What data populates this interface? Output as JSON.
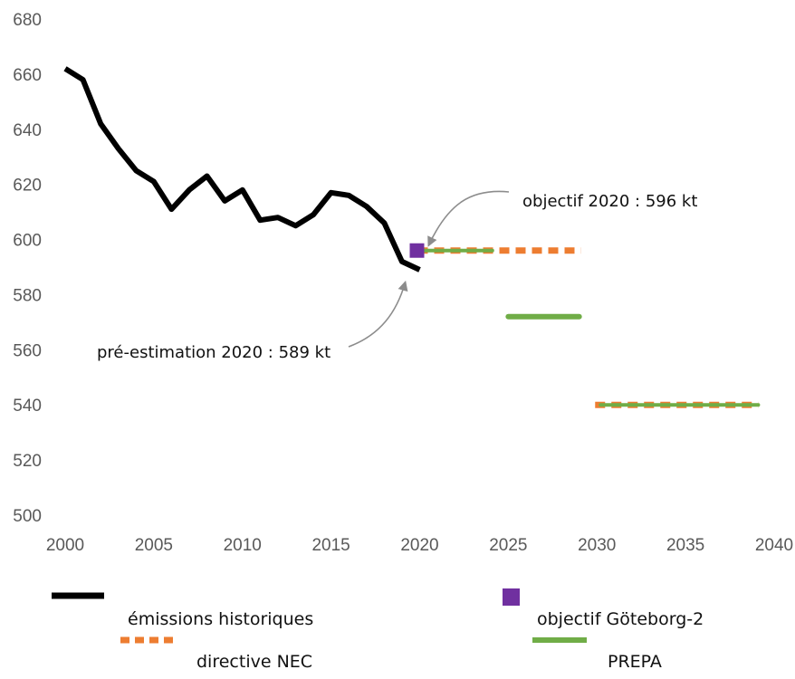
{
  "chart_data": {
    "type": "line",
    "x_ticks": [
      2000,
      2005,
      2010,
      2015,
      2020,
      2025,
      2030,
      2035,
      2040
    ],
    "y_ticks": [
      500,
      520,
      540,
      560,
      580,
      600,
      620,
      640,
      660,
      680
    ],
    "xlim": [
      2000,
      2040
    ],
    "ylim": [
      500,
      680
    ],
    "grid": false,
    "legend_position": "bottom",
    "series": [
      {
        "name": "émissions historiques",
        "kind": "line",
        "color": "#000000",
        "points": [
          [
            2000,
            662
          ],
          [
            2001,
            658
          ],
          [
            2002,
            642
          ],
          [
            2003,
            633
          ],
          [
            2004,
            625
          ],
          [
            2005,
            621
          ],
          [
            2006,
            611
          ],
          [
            2007,
            618
          ],
          [
            2008,
            623
          ],
          [
            2009,
            614
          ],
          [
            2010,
            618
          ],
          [
            2011,
            607
          ],
          [
            2012,
            608
          ],
          [
            2013,
            605
          ],
          [
            2014,
            609
          ],
          [
            2015,
            617
          ],
          [
            2016,
            616
          ],
          [
            2017,
            612
          ],
          [
            2018,
            606
          ],
          [
            2019,
            592
          ],
          [
            2020,
            589
          ]
        ]
      },
      {
        "name": "objectif Göteborg-2",
        "kind": "marker",
        "color": "#7030A0",
        "points": [
          [
            2020,
            596
          ]
        ]
      },
      {
        "name": "directive NEC",
        "kind": "dashed",
        "color": "#ED7D31",
        "segments": [
          {
            "x": [
              2020,
              2029
            ],
            "y": 596
          },
          {
            "x": [
              2030,
              2039
            ],
            "y": 540
          }
        ]
      },
      {
        "name": "PREPA",
        "kind": "solid",
        "color": "#70AD47",
        "segments": [
          {
            "x": [
              2020,
              2024
            ],
            "y": 596
          },
          {
            "x": [
              2025,
              2029
            ],
            "y": 572
          },
          {
            "x": [
              2030,
              2039
            ],
            "y": 540
          }
        ]
      }
    ],
    "annotations": [
      {
        "text": "objectif 2020 : 596 kt",
        "target": [
          2020,
          596
        ]
      },
      {
        "text": "pré-estimation 2020 : 589 kt",
        "target": [
          2020,
          589
        ]
      }
    ]
  }
}
